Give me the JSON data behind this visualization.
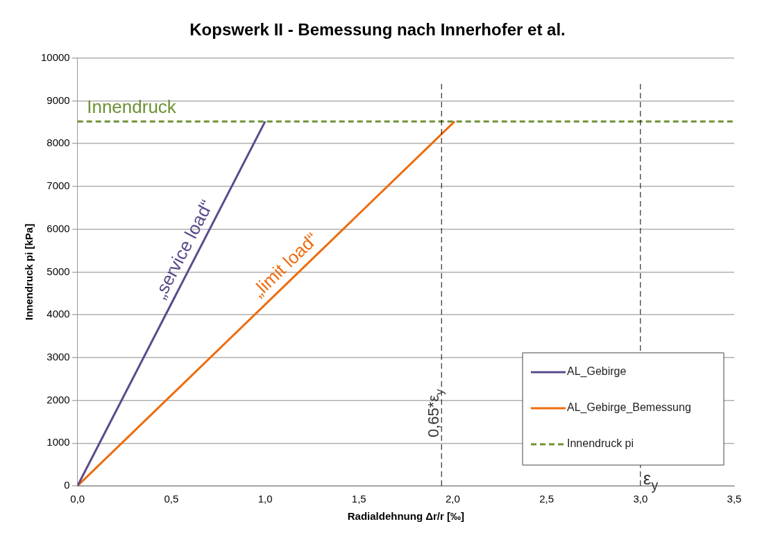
{
  "chart_data": {
    "type": "line",
    "title": "Kopswerk II - Bemessung nach Innerhofer et al.",
    "xlabel": "Radialdehnung Δr/r [‰]",
    "ylabel": "Innendruck pi [kPa]",
    "series": [
      {
        "name": "AL_Gebirge",
        "color": "#5b4a8b",
        "x": [
          0,
          1.0
        ],
        "values": [
          0,
          8520
        ]
      },
      {
        "name": "AL_Gebirge_Bemessung",
        "color": "#ee6b0e",
        "x": [
          0,
          2.01
        ],
        "values": [
          0,
          8520
        ]
      },
      {
        "name": "Innendruck pi",
        "color": "#6e9234",
        "x": [
          0,
          3.5
        ],
        "values": [
          8520,
          8520
        ],
        "line_style": "dashed"
      }
    ],
    "xlim": [
      0,
      3.5
    ],
    "xticks": [
      {
        "value": 0,
        "label": "0,0"
      },
      {
        "value": 0.5,
        "label": "0,5"
      },
      {
        "value": 1,
        "label": "1,0"
      },
      {
        "value": 1.5,
        "label": "1,5"
      },
      {
        "value": 2,
        "label": "2,0"
      },
      {
        "value": 2.5,
        "label": "2,5"
      },
      {
        "value": 3,
        "label": "3,0"
      },
      {
        "value": 3.5,
        "label": "3,5"
      }
    ],
    "ylim": [
      0,
      10000
    ],
    "yticks": [
      0,
      1000,
      2000,
      3000,
      4000,
      5000,
      6000,
      7000,
      8000,
      9000,
      10000
    ],
    "ref_lines": [
      {
        "axis": "x",
        "value": 1.94,
        "label": "0,65*ε$_{y}$",
        "color": "#000000",
        "line_style": "dashed"
      },
      {
        "axis": "x",
        "value": 3.0,
        "label": "ε$_{y}$",
        "color": "#000000",
        "line_style": "dashed"
      }
    ],
    "annotations": [
      {
        "text": "Innendruck",
        "x": 0.05,
        "y": 8520
      },
      {
        "text": "„service load“",
        "x": 0.5,
        "y": 4250
      },
      {
        "text": "„limit load“",
        "x": 1.0,
        "y": 4250
      }
    ],
    "grid": "y",
    "legend": "bottom right",
    "marker": "none"
  }
}
